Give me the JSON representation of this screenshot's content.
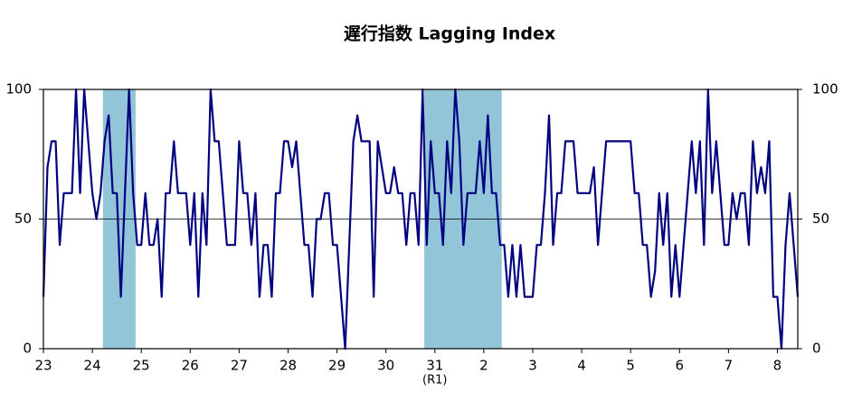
{
  "chart_data": {
    "type": "line",
    "title": "遅行指数 Lagging Index",
    "categories": [
      "23",
      null,
      null,
      null,
      null,
      null,
      null,
      null,
      null,
      null,
      null,
      null,
      "24",
      null,
      null,
      null,
      null,
      null,
      null,
      null,
      null,
      null,
      null,
      null,
      "25",
      null,
      null,
      null,
      null,
      null,
      null,
      null,
      null,
      null,
      null,
      null,
      "26",
      null,
      null,
      null,
      null,
      null,
      null,
      null,
      null,
      null,
      null,
      null,
      "27",
      null,
      null,
      null,
      null,
      null,
      null,
      null,
      null,
      null,
      null,
      null,
      "28",
      null,
      null,
      null,
      null,
      null,
      null,
      null,
      null,
      null,
      null,
      null,
      "29",
      null,
      null,
      null,
      null,
      null,
      null,
      null,
      null,
      null,
      null,
      null,
      "30",
      null,
      null,
      null,
      null,
      null,
      null,
      null,
      null,
      null,
      null,
      null,
      "31",
      null,
      null,
      null,
      null,
      null,
      null,
      null,
      null,
      null,
      null,
      null,
      "2",
      null,
      null,
      null,
      null,
      null,
      null,
      null,
      null,
      null,
      null,
      null,
      "3",
      null,
      null,
      null,
      null,
      null,
      null,
      null,
      null,
      null,
      null,
      null,
      "4",
      null,
      null,
      null,
      null,
      null,
      null,
      null,
      null,
      null,
      null,
      null,
      "5",
      null,
      null,
      null,
      null,
      null,
      null,
      null,
      null,
      null,
      null,
      null,
      "6",
      null,
      null,
      null,
      null,
      null,
      null,
      null,
      null,
      null,
      null,
      null,
      "7",
      null,
      null,
      null,
      null,
      null,
      null,
      null,
      null,
      null,
      null,
      null,
      "8",
      null,
      null,
      null,
      null,
      null
    ],
    "values": [
      20,
      70,
      80,
      80,
      40,
      60,
      60,
      60,
      100,
      60,
      100,
      80,
      60,
      50,
      60,
      80,
      90,
      60,
      60,
      20,
      60,
      100,
      60,
      40,
      40,
      60,
      40,
      40,
      50,
      20,
      60,
      60,
      80,
      60,
      60,
      60,
      40,
      60,
      20,
      60,
      40,
      100,
      80,
      80,
      60,
      40,
      40,
      40,
      80,
      60,
      60,
      40,
      60,
      20,
      40,
      40,
      20,
      60,
      60,
      80,
      80,
      70,
      80,
      60,
      40,
      40,
      20,
      50,
      50,
      60,
      60,
      40,
      40,
      20,
      0,
      40,
      80,
      90,
      80,
      80,
      80,
      20,
      80,
      70,
      60,
      60,
      70,
      60,
      60,
      40,
      60,
      60,
      40,
      100,
      40,
      80,
      60,
      60,
      40,
      80,
      60,
      100,
      80,
      40,
      60,
      60,
      60,
      80,
      60,
      90,
      60,
      60,
      40,
      40,
      20,
      40,
      20,
      40,
      20,
      20,
      20,
      40,
      40,
      60,
      90,
      40,
      60,
      60,
      80,
      80,
      80,
      60,
      60,
      60,
      60,
      70,
      40,
      60,
      80,
      80,
      80,
      80,
      80,
      80,
      80,
      60,
      60,
      40,
      40,
      20,
      30,
      60,
      40,
      60,
      20,
      40,
      20,
      40,
      60,
      80,
      60,
      80,
      40,
      100,
      60,
      80,
      60,
      40,
      40,
      60,
      50,
      60,
      60,
      40,
      80,
      60,
      70,
      60,
      80,
      20,
      20,
      0,
      40,
      60,
      40,
      20
    ],
    "color": "#000080",
    "ylim": [
      0,
      100
    ],
    "yticks": [
      0,
      50,
      100
    ],
    "gridlines": [
      50
    ],
    "shaded": [
      [
        14.6,
        22.6
      ],
      [
        93.4,
        112.4
      ]
    ],
    "shade_color": "#92c5d8",
    "annotations": [
      {
        "text": "(R1)",
        "category": 96
      }
    ]
  }
}
